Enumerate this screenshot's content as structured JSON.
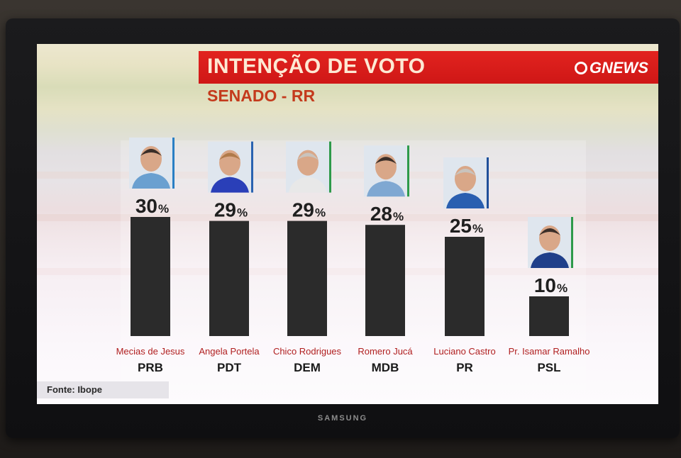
{
  "tv": {
    "brand": "SAMSUNG"
  },
  "header": {
    "title": "INTENÇÃO DE VOTO",
    "subtitle": "SENADO - RR",
    "logo": "GNEWS"
  },
  "footer": {
    "source": "Fonte: Ibope"
  },
  "colors": {
    "bar": "#2b2b2b",
    "title_bg": "#d81e1b",
    "candidate_name": "#b01f1f",
    "party": "#1a1a1a",
    "value": "#1f1f1f"
  },
  "chart_data": {
    "type": "bar",
    "title": "INTENÇÃO DE VOTO",
    "subtitle": "SENADO - RR",
    "categories": [
      "Mecias de Jesus",
      "Angela Portela",
      "Chico Rodrigues",
      "Romero Jucá",
      "Luciano Castro",
      "Pr. Isamar Ramalho"
    ],
    "parties": [
      "PRB",
      "PDT",
      "DEM",
      "MDB",
      "PR",
      "PSL"
    ],
    "values": [
      30,
      29,
      29,
      28,
      25,
      10
    ],
    "value_labels": [
      "30",
      "29",
      "29",
      "28",
      "25",
      "10"
    ],
    "unit": "%",
    "party_colors": [
      "#2a7fc4",
      "#2a63b0",
      "#2e9a4a",
      "#2e9a4a",
      "#1f4f9a",
      "#2e9a4a"
    ],
    "shirt_colors": [
      "#6aa0d0",
      "#2a3fb8",
      "#e8e8e8",
      "#7fa8d2",
      "#2a5fb0",
      "#1f3f8a"
    ],
    "ylim": [
      0,
      32
    ],
    "xlabel": "",
    "ylabel": "",
    "grid": false,
    "legend": "none"
  }
}
